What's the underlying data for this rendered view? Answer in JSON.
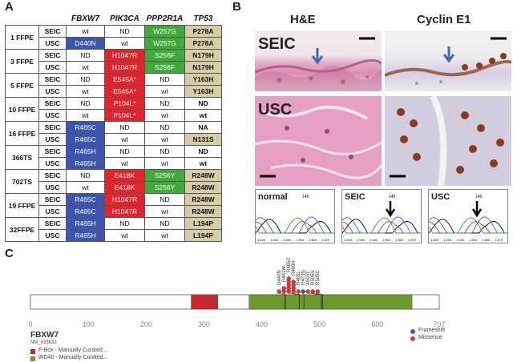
{
  "panel_labels": {
    "a": "A",
    "b": "B",
    "c": "C"
  },
  "table": {
    "headers": [
      "",
      "",
      "FBXW7",
      "PIK3CA",
      "PPP2R1A",
      "TP53"
    ],
    "rows": [
      {
        "case": "1 FFPE",
        "type": "SEIC",
        "cells": [
          [
            "wt",
            "white"
          ],
          [
            "ND",
            "white"
          ],
          [
            "W257G",
            "green"
          ],
          [
            "P278A",
            "tan"
          ]
        ]
      },
      {
        "case": "",
        "type": "USC",
        "cells": [
          [
            "D440N",
            "blue"
          ],
          [
            "wt",
            "white"
          ],
          [
            "W257G",
            "green"
          ],
          [
            "P278A",
            "tan"
          ]
        ]
      },
      {
        "case": "3 FFPE",
        "type": "SEIC",
        "cells": [
          [
            "ND",
            "white"
          ],
          [
            "H1047R",
            "red"
          ],
          [
            "S256F",
            "green"
          ],
          [
            "N179H",
            "tan"
          ]
        ]
      },
      {
        "case": "",
        "type": "USC",
        "cells": [
          [
            "wt",
            "white"
          ],
          [
            "H1047R",
            "red"
          ],
          [
            "S256F",
            "green"
          ],
          [
            "N179H",
            "tan"
          ]
        ]
      },
      {
        "case": "5 FFPE",
        "type": "SEIC",
        "cells": [
          [
            "ND",
            "white"
          ],
          [
            "E545A*",
            "red"
          ],
          [
            "ND",
            "white"
          ],
          [
            "Y163H",
            "tan"
          ]
        ]
      },
      {
        "case": "",
        "type": "USC",
        "cells": [
          [
            "wt",
            "white"
          ],
          [
            "E545A*",
            "red"
          ],
          [
            "wt",
            "white"
          ],
          [
            "Y163H",
            "tan"
          ]
        ]
      },
      {
        "case": "10 FFPE",
        "type": "SEIC",
        "cells": [
          [
            "ND",
            "white"
          ],
          [
            "P104L*",
            "red"
          ],
          [
            "ND",
            "white"
          ],
          [
            "ND",
            "white"
          ]
        ]
      },
      {
        "case": "",
        "type": "USC",
        "cells": [
          [
            "wt",
            "white"
          ],
          [
            "P104L*",
            "red"
          ],
          [
            "wt",
            "white"
          ],
          [
            "wt",
            "white"
          ]
        ]
      },
      {
        "case": "16 FFPE",
        "type": "SEIC",
        "cells": [
          [
            "R465C",
            "blue"
          ],
          [
            "ND",
            "white"
          ],
          [
            "ND",
            "white"
          ],
          [
            "NA",
            "white"
          ]
        ]
      },
      {
        "case": "",
        "type": "USC",
        "cells": [
          [
            "R465C",
            "blue"
          ],
          [
            "wt",
            "white"
          ],
          [
            "wt",
            "white"
          ],
          [
            "N131S",
            "tan"
          ]
        ]
      },
      {
        "case": "366TS",
        "type": "SEIC",
        "cells": [
          [
            "R465H",
            "blue"
          ],
          [
            "ND",
            "white"
          ],
          [
            "ND",
            "white"
          ],
          [
            "ND",
            "white"
          ]
        ]
      },
      {
        "case": "",
        "type": "USC",
        "cells": [
          [
            "R465H",
            "blue"
          ],
          [
            "wt",
            "white"
          ],
          [
            "wt",
            "white"
          ],
          [
            "wt",
            "white"
          ]
        ]
      },
      {
        "case": "702TS",
        "type": "SEIC",
        "cells": [
          [
            "ND",
            "white"
          ],
          [
            "E418K",
            "red"
          ],
          [
            "S256Y",
            "green"
          ],
          [
            "R248W",
            "tan"
          ]
        ]
      },
      {
        "case": "",
        "type": "USC",
        "cells": [
          [
            "wt",
            "white"
          ],
          [
            "E418K",
            "red"
          ],
          [
            "S256Y",
            "green"
          ],
          [
            "R248W",
            "tan"
          ]
        ]
      },
      {
        "case": "19 FFPE",
        "type": "SEIC",
        "cells": [
          [
            "R465C",
            "blue"
          ],
          [
            "H1047R",
            "red"
          ],
          [
            "ND",
            "white"
          ],
          [
            "R248W",
            "tan"
          ]
        ]
      },
      {
        "case": "",
        "type": "USC",
        "cells": [
          [
            "R465C",
            "blue"
          ],
          [
            "H1047R",
            "red"
          ],
          [
            "wt",
            "white"
          ],
          [
            "R248W",
            "tan"
          ]
        ]
      },
      {
        "case": "32FFPE",
        "type": "SEIC",
        "cells": [
          [
            "R465H",
            "blue"
          ],
          [
            "ND",
            "white"
          ],
          [
            "ND",
            "white"
          ],
          [
            "L194P",
            "tan"
          ]
        ]
      },
      {
        "case": "",
        "type": "USC",
        "cells": [
          [
            "R465H",
            "blue"
          ],
          [
            "wt",
            "white"
          ],
          [
            "wt",
            "white"
          ],
          [
            "L194P",
            "tan"
          ]
        ]
      }
    ]
  },
  "panel_b": {
    "col_titles": [
      "H&E",
      "Cyclin E1"
    ],
    "hist_labels": [
      "SEIC",
      "USC"
    ],
    "traces": [
      {
        "label": "normal",
        "numbers": [
          "145"
        ],
        "ticks": [
          "1,520",
          "1,530",
          "1,540",
          "1,550",
          "1,560",
          "1,570"
        ]
      },
      {
        "label": "SEIC",
        "numbers": [
          "145"
        ],
        "ticks": [
          "1,520",
          "1,530",
          "1,540",
          "1,550",
          "1,560",
          "1,570"
        ]
      },
      {
        "label": "USC",
        "numbers": [
          "145"
        ],
        "ticks": [
          "1,520",
          "1,530",
          "1,540",
          "1,550",
          "1,560",
          "1,570"
        ]
      }
    ]
  },
  "panel_c": {
    "gene": "FBXW7",
    "transcript": "NM_033632",
    "axis": {
      "ticks": [
        0,
        100,
        200,
        300,
        400,
        500,
        600,
        707
      ],
      "max": 707
    },
    "domains": [
      {
        "name": "F-Box - Manually Curated...",
        "start": 278,
        "end": 324,
        "color": "#c9252c"
      },
      {
        "name": "WD40 - Manually Curated...",
        "start": 378,
        "end": 660,
        "color": "#6c9a2a"
      }
    ],
    "mutations": [
      {
        "label": "D440N",
        "pos": 440,
        "count": 1,
        "type": "Missense"
      },
      {
        "label": "R441W",
        "pos": 441,
        "count": 2,
        "type": "Missense"
      },
      {
        "label": "R465C",
        "pos": 465,
        "count": 5,
        "type": "Missense"
      },
      {
        "label": "R465H",
        "pos": 465,
        "count": 4,
        "type": "Missense"
      },
      {
        "label": "R465L",
        "pos": 465,
        "count": 1,
        "type": "Missense"
      },
      {
        "label": "R473fs",
        "pos": 473,
        "count": 1,
        "type": "Frameshift"
      },
      {
        "label": "A503T",
        "pos": 503,
        "count": 1,
        "type": "Missense"
      },
      {
        "label": "R505S",
        "pos": 505,
        "count": 1,
        "type": "Missense"
      },
      {
        "label": "R505C",
        "pos": 505,
        "count": 1,
        "type": "Missense"
      }
    ],
    "legend_types": [
      {
        "name": "Frameshift",
        "color": "#3b5aa8"
      },
      {
        "name": "Missense",
        "color": "#d23b3b"
      }
    ]
  }
}
